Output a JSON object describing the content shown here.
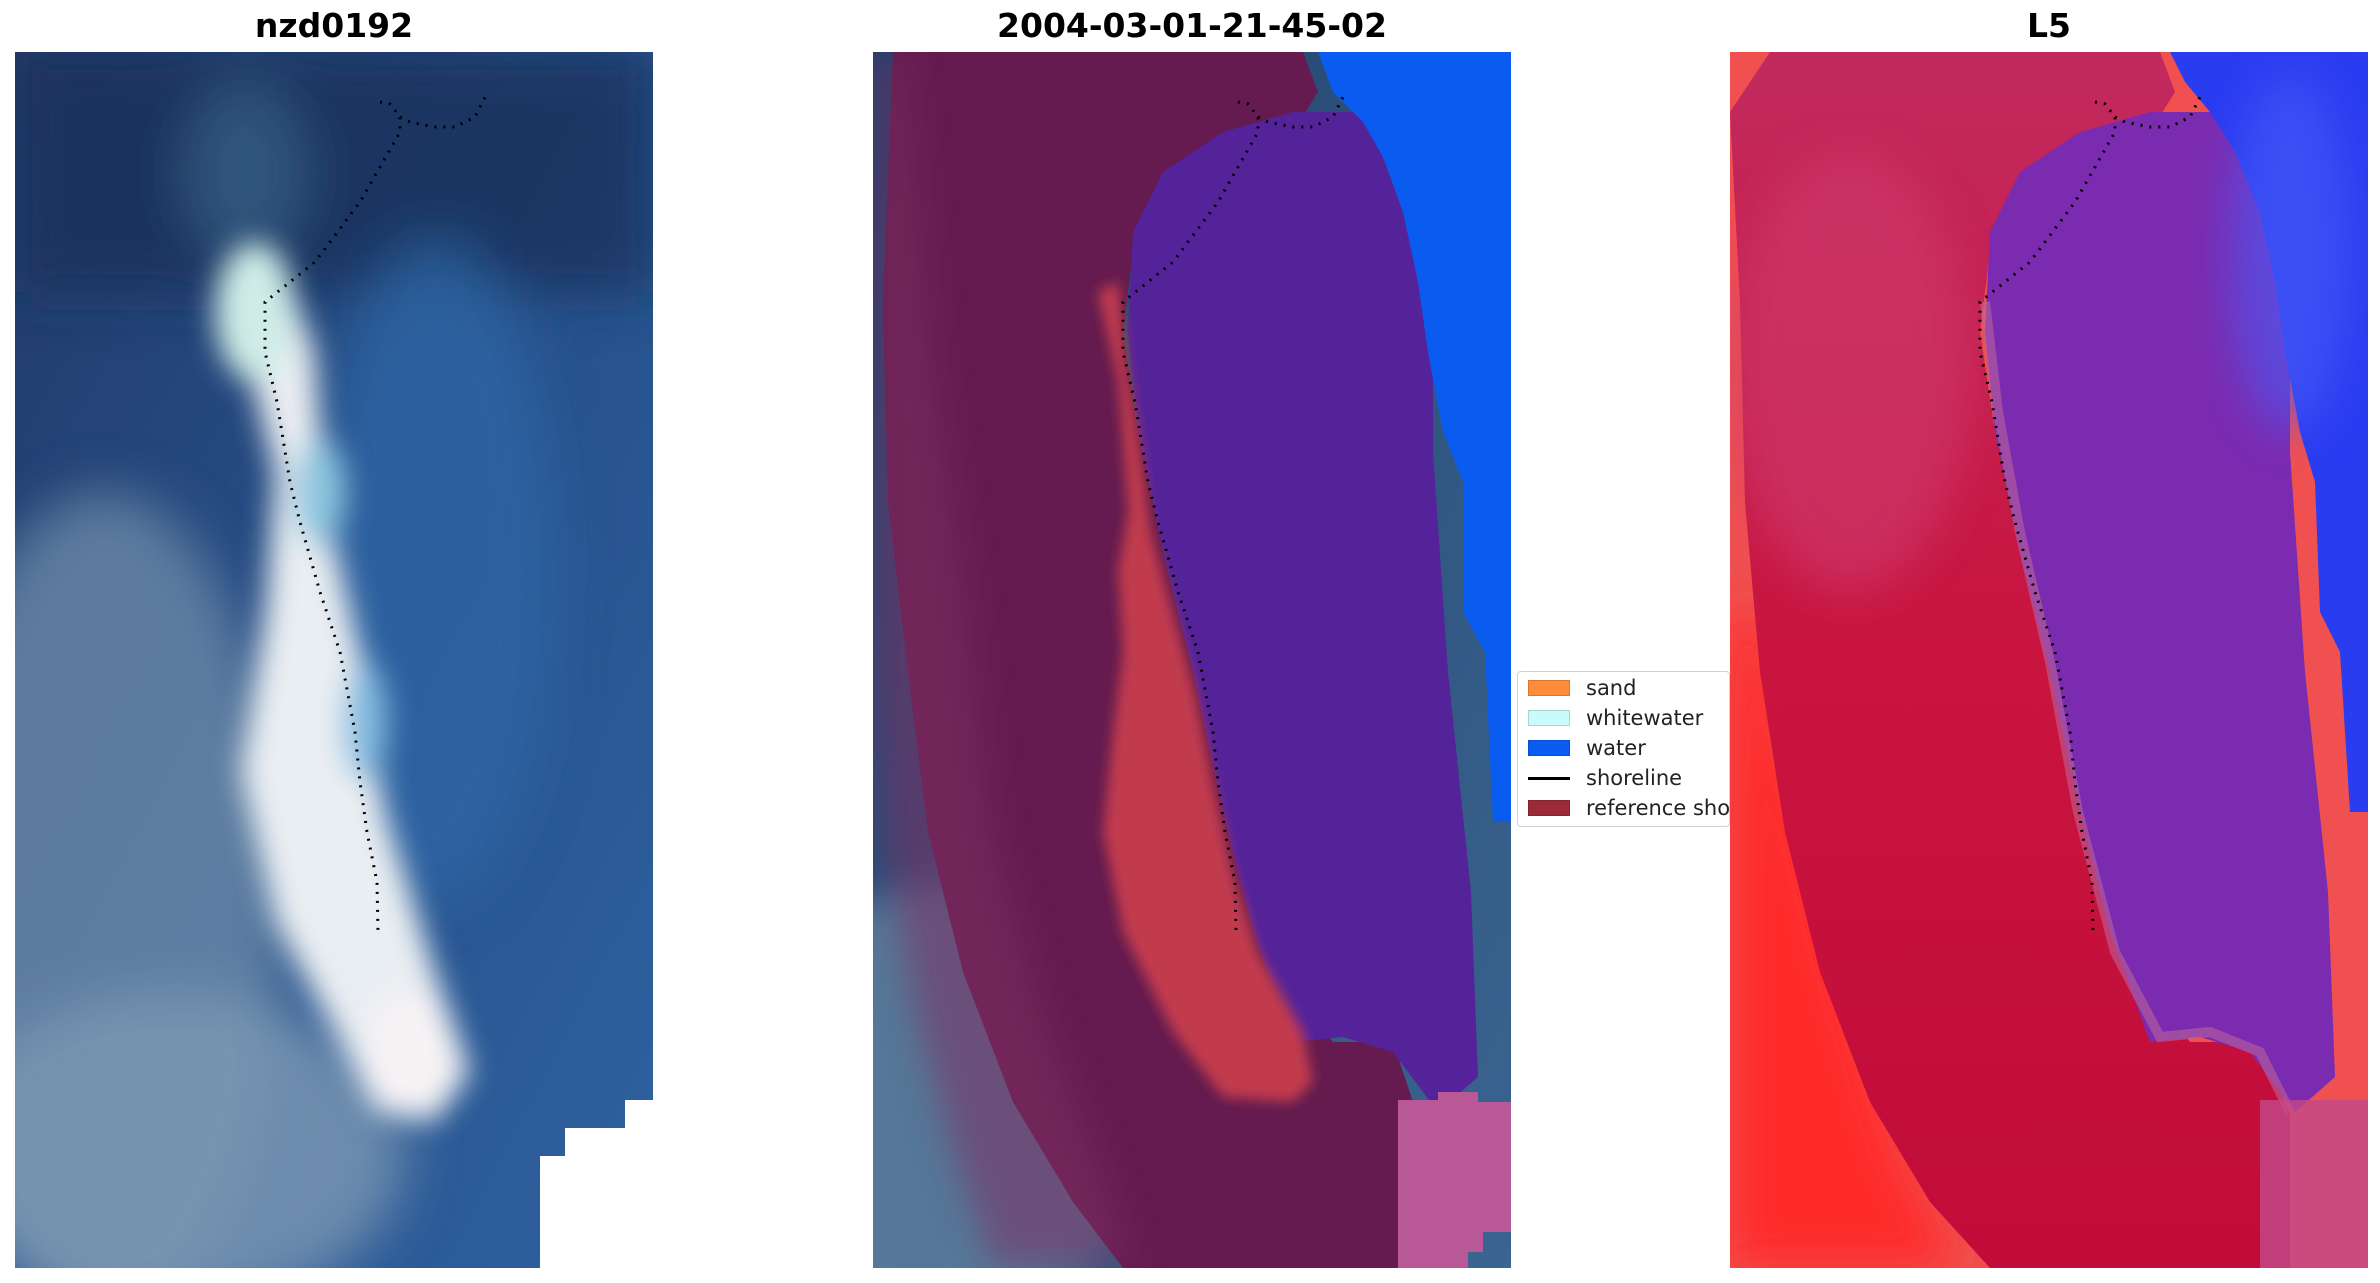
{
  "panels": [
    {
      "title": "nzd0192"
    },
    {
      "title": "2004-03-01-21-45-02"
    },
    {
      "title": "L5"
    }
  ],
  "legend": {
    "items": [
      {
        "label": "sand",
        "color": "#ff8c3a",
        "kind": "patch"
      },
      {
        "label": "whitewater",
        "color": "#c9fbfb",
        "kind": "patch"
      },
      {
        "label": "water",
        "color": "#0a5cf0",
        "kind": "patch"
      },
      {
        "label": "shoreline",
        "color": "#000000",
        "kind": "line"
      },
      {
        "label": "reference shoreline",
        "color": "#9a2a35",
        "kind": "patch"
      }
    ]
  },
  "colors": {
    "ocean_dark": "#1e3563",
    "ocean_mid": "#2e5f9a",
    "sand_white": "#f4f1f2",
    "classified_land": "#661a4e",
    "classified_lagoon": "#54229a",
    "classified_water": "#0a5cf0",
    "classified_sand": "#c0394f",
    "index_land": "#c8134a",
    "index_lagoon": "#7628b0",
    "index_water": "#2332ef"
  }
}
